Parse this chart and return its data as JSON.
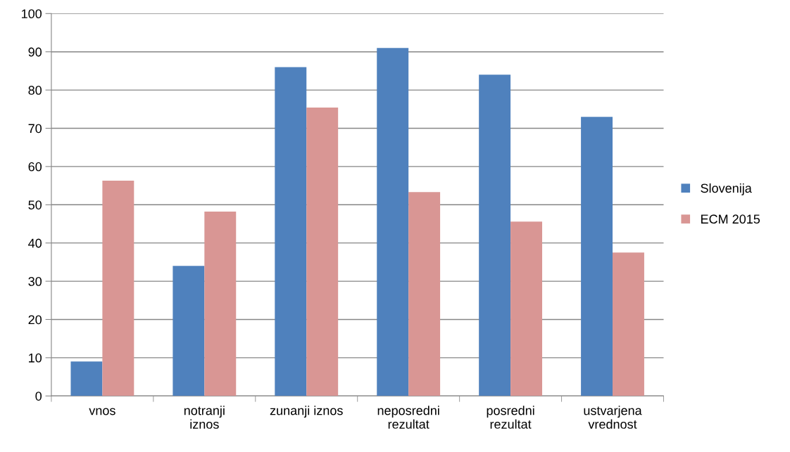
{
  "chart_data": {
    "type": "bar",
    "categories": [
      "vnos",
      "notranji\niznos",
      "zunanji iznos",
      "neposredni\nrezultat",
      "posredni\nrezultat",
      "ustvarjena\nvrednost"
    ],
    "series": [
      {
        "name": "Slovenija",
        "color": "#4f81bd",
        "values": [
          9,
          34,
          86,
          91,
          84,
          73
        ]
      },
      {
        "name": "ECM 2015",
        "color": "#d99694",
        "values": [
          56.3,
          48.2,
          75.4,
          53.3,
          45.6,
          37.5
        ]
      }
    ],
    "ylim": [
      0,
      100
    ],
    "yticks": [
      0,
      10,
      20,
      30,
      40,
      50,
      60,
      70,
      80,
      90,
      100
    ],
    "grid": "y",
    "legend": "right"
  }
}
